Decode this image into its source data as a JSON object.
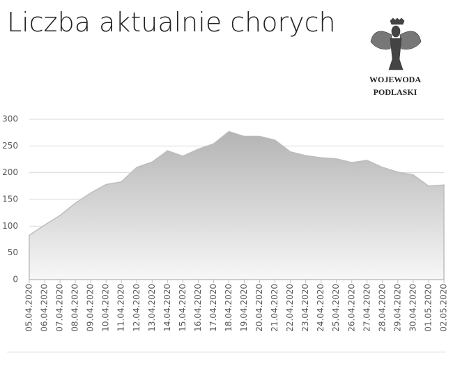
{
  "chart_data": {
    "type": "area",
    "title": "Liczba aktualnie chorych",
    "categories": [
      "05.04.2020",
      "06.04.2020",
      "07.04.2020",
      "08.04.2020",
      "09.04.2020",
      "10.04.2020",
      "11.04.2020",
      "12.04.2020",
      "13.04.2020",
      "14.04.2020",
      "15.04.2020",
      "16.04.2020",
      "17.04.2020",
      "18.04.2020",
      "19.04.2020",
      "20.04.2020",
      "21.04.2020",
      "22.04.2020",
      "23.04.2020",
      "24.04.2020",
      "25.04.2020",
      "26.04.2020",
      "27.04.2020",
      "28.04.2020",
      "29.04.2020",
      "30.04.2020",
      "01.05.2020",
      "02.05.2020"
    ],
    "values": [
      83,
      102,
      120,
      143,
      162,
      178,
      183,
      210,
      220,
      241,
      231,
      244,
      254,
      277,
      268,
      268,
      261,
      239,
      232,
      228,
      226,
      219,
      223,
      210,
      201,
      196,
      175,
      177
    ],
    "color": "#bdbdbd",
    "ylim": [
      0,
      300
    ],
    "yticks": [
      0,
      50,
      100,
      150,
      200,
      250,
      300
    ],
    "grid": true
  },
  "logo": {
    "lines": [
      "WOJEWODA",
      "PODLASKI"
    ]
  }
}
